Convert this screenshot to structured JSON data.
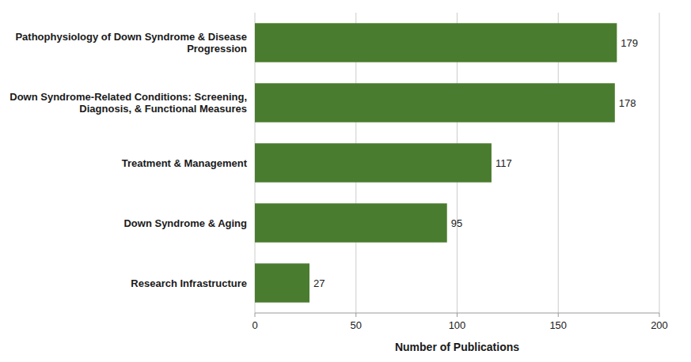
{
  "chart_data": {
    "type": "bar",
    "orientation": "horizontal",
    "categories": [
      "Research Infrastructure",
      "Down Syndrome & Aging",
      "Treatment & Management",
      "Down Syndrome-Related Conditions: Screening,\nDiagnosis, & Functional Measures",
      "Pathophysiology of Down Syndrome & Disease\nProgression"
    ],
    "values": [
      27,
      95,
      117,
      178,
      179
    ],
    "color": "#4a7c2f",
    "xlabel": "Number of Publications",
    "xlim": [
      0,
      200
    ],
    "xticks": [
      0,
      50,
      100,
      150,
      200
    ],
    "grid": true,
    "data_labels": true
  }
}
